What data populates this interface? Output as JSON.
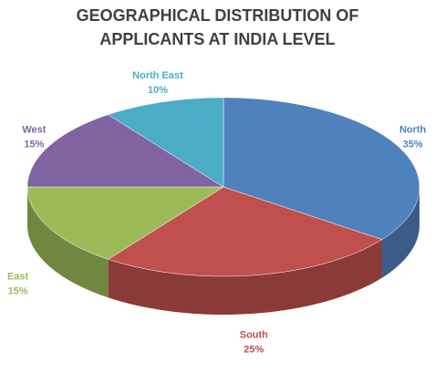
{
  "chart_data": {
    "type": "pie",
    "title": "GEOGRAPHICAL DISTRIBUTION OF APPLICANTS AT INDIA LEVEL",
    "categories": [
      "North",
      "South",
      "East",
      "West",
      "North East"
    ],
    "values": [
      35,
      25,
      15,
      15,
      10
    ],
    "value_labels": [
      "35%",
      "25%",
      "15%",
      "15%",
      "10%"
    ],
    "colors": [
      "#4f81bd",
      "#c0504d",
      "#9bbb59",
      "#8064a2",
      "#4bacc6"
    ]
  }
}
